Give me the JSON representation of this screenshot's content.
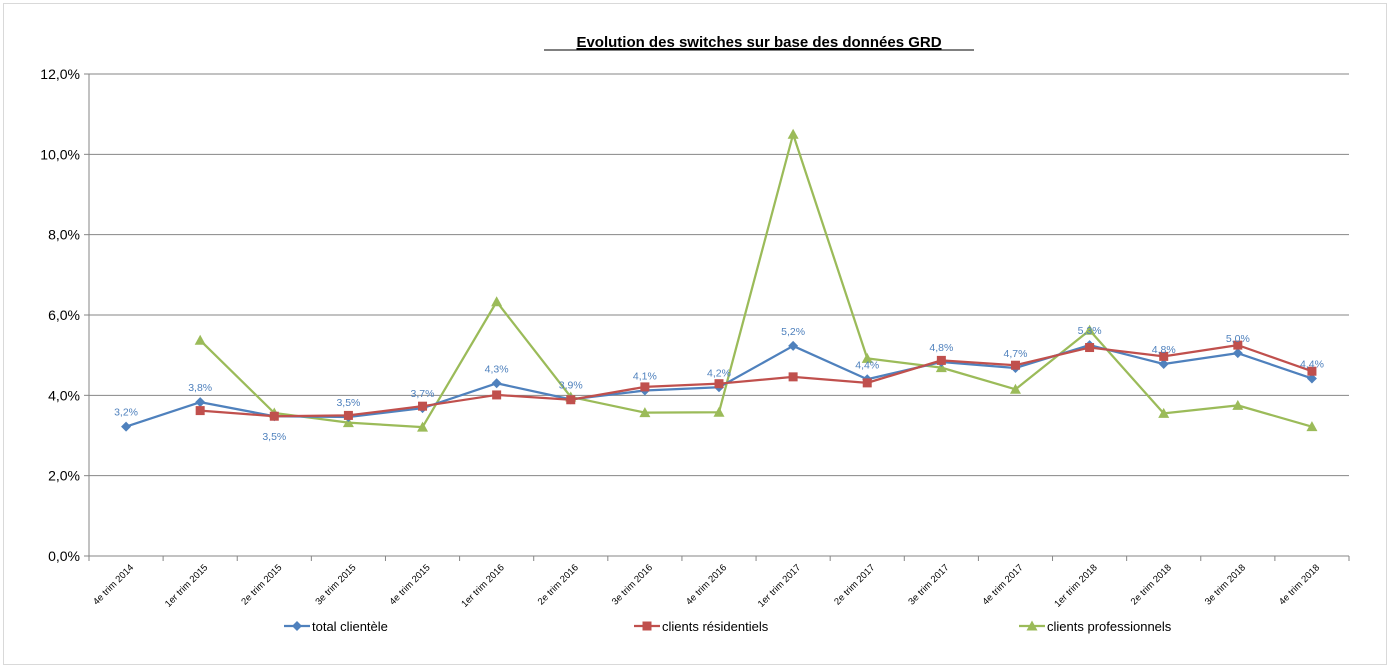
{
  "chart_data": {
    "type": "line",
    "title": "Evolution des switches sur base des données GRD",
    "xlabel": "",
    "ylabel": "",
    "ylim": [
      0,
      12
    ],
    "yticks": [
      "0,0%",
      "2,0%",
      "4,0%",
      "6,0%",
      "8,0%",
      "10,0%",
      "12,0%"
    ],
    "grid": true,
    "legend_position": "bottom",
    "categories": [
      "4e trim 2014",
      "1er trim 2015",
      "2e trim 2015",
      "3e trim 2015",
      "4e trim 2015",
      "1er trim 2016",
      "2e trim 2016",
      "3e trim 2016",
      "4e trim 2016",
      "1er trim 2017",
      "2e trim 2017",
      "3e trim 2017",
      "4e trim 2017",
      "1er trim 2018",
      "2e trim 2018",
      "3e trim 2018",
      "4e trim 2018"
    ],
    "series": [
      {
        "name": "total clientèle",
        "color": "#4f81bd",
        "marker": "diamond",
        "values": [
          3.22,
          3.83,
          3.48,
          3.46,
          3.68,
          4.3,
          3.9,
          4.12,
          4.2,
          5.23,
          4.4,
          4.83,
          4.68,
          5.25,
          4.78,
          5.05,
          4.42
        ],
        "data_labels": [
          "3,2%",
          "3,8%",
          "3,5%",
          "3,5%",
          "3,7%",
          "4,3%",
          "3,9%",
          "4,1%",
          "4,2%",
          "5,2%",
          "4,4%",
          "4,8%",
          "4,7%",
          "5,3%",
          "4,8%",
          "5,0%",
          "4,4%"
        ]
      },
      {
        "name": "clients résidentiels",
        "color": "#c0504d",
        "marker": "square",
        "values": [
          null,
          3.62,
          3.48,
          3.5,
          3.73,
          4.01,
          3.89,
          4.21,
          4.29,
          4.46,
          4.31,
          4.87,
          4.75,
          5.19,
          4.97,
          5.25,
          4.6
        ]
      },
      {
        "name": "clients professionnels",
        "color": "#9bbb59",
        "marker": "triangle",
        "values": [
          null,
          5.37,
          3.56,
          3.32,
          3.21,
          6.33,
          3.96,
          3.57,
          3.58,
          10.5,
          4.92,
          4.69,
          4.15,
          5.62,
          3.55,
          3.75,
          3.22
        ]
      }
    ]
  }
}
